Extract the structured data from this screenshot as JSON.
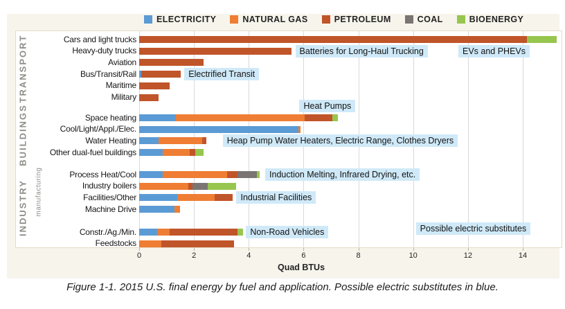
{
  "colors": {
    "electricity": "#5b9bd5",
    "natural_gas": "#ef7d33",
    "petroleum": "#c0552a",
    "coal": "#7a7572",
    "bioenergy": "#97c64e",
    "annotation_bg": "#cfe9f8"
  },
  "legend": {
    "items": [
      {
        "label": "ELECTRICITY",
        "key": "electricity"
      },
      {
        "label": "NATURAL GAS",
        "key": "natural_gas"
      },
      {
        "label": "PETROLEUM",
        "key": "petroleum"
      },
      {
        "label": "COAL",
        "key": "coal"
      },
      {
        "label": "BIOENERGY",
        "key": "bioenergy"
      }
    ]
  },
  "chart_data": {
    "type": "bar",
    "orientation": "horizontal-stacked",
    "xlabel": "Quad BTUs",
    "xticks": [
      0,
      2,
      4,
      6,
      8,
      10,
      12,
      14
    ],
    "xlim": [
      0,
      15.5
    ],
    "grid": "vertical",
    "series_keys": [
      "electricity",
      "natural_gas",
      "petroleum",
      "coal",
      "bioenergy"
    ],
    "groups": [
      {
        "name": "TRANSPORT",
        "subname": "",
        "rows": [
          {
            "label": "Cars and light trucks",
            "values": {
              "petroleum": 14.15,
              "bioenergy": 1.1
            }
          },
          {
            "label": "Heavy-duty trucks",
            "values": {
              "petroleum": 5.55
            }
          },
          {
            "label": "Aviation",
            "values": {
              "petroleum": 2.35
            }
          },
          {
            "label": "Bus/Transit/Rail",
            "values": {
              "electricity": 0.07,
              "petroleum": 1.45
            }
          },
          {
            "label": "Maritime",
            "values": {
              "petroleum": 1.1
            }
          },
          {
            "label": "Military",
            "values": {
              "petroleum": 0.7
            }
          }
        ]
      },
      {
        "name": "BUILDINGS",
        "subname": "",
        "rows": [
          {
            "label": "Space heating",
            "values": {
              "electricity": 1.35,
              "natural_gas": 4.7,
              "petroleum": 1.0,
              "bioenergy": 0.2
            }
          },
          {
            "label": "Cool/Light/Appl./Elec.",
            "values": {
              "electricity": 5.8,
              "natural_gas": 0.1
            }
          },
          {
            "label": "Water Heating",
            "values": {
              "electricity": 0.7,
              "natural_gas": 1.6,
              "petroleum": 0.15
            }
          },
          {
            "label": "Other dual-fuel buildings",
            "values": {
              "electricity": 0.85,
              "natural_gas": 1.0,
              "petroleum": 0.2,
              "bioenergy": 0.3
            }
          }
        ]
      },
      {
        "name": "INDUSTRY",
        "subname": "manufacturing",
        "rows": [
          {
            "label": "Process Heat/Cool",
            "values": {
              "electricity": 0.85,
              "natural_gas": 2.35,
              "petroleum": 0.4,
              "coal": 0.7,
              "bioenergy": 0.1
            }
          },
          {
            "label": "Industry boilers",
            "values": {
              "natural_gas": 1.8,
              "petroleum": 0.15,
              "coal": 0.55,
              "bioenergy": 1.05
            }
          },
          {
            "label": "Facilities/Other",
            "values": {
              "electricity": 1.4,
              "natural_gas": 1.35,
              "petroleum": 0.65
            }
          },
          {
            "label": "Machine Drive",
            "values": {
              "electricity": 1.3,
              "natural_gas": 0.2
            }
          }
        ]
      },
      {
        "name": "",
        "subname": "",
        "rows": [
          {
            "label": "Constr./Ag./Min.",
            "values": {
              "electricity": 0.65,
              "natural_gas": 0.45,
              "petroleum": 2.5,
              "bioenergy": 0.2
            }
          },
          {
            "label": "Feedstocks",
            "values": {
              "natural_gas": 0.8,
              "petroleum": 2.65
            }
          }
        ]
      }
    ],
    "annotations": [
      {
        "text": "Batteries for Long-Haul Trucking",
        "group": 0,
        "row": 1,
        "x": 5.7,
        "dy": 0
      },
      {
        "text": "EVs and PHEVs",
        "group": 0,
        "row": 1,
        "x": 11.65,
        "dy": 0
      },
      {
        "text": "Electrified Transit",
        "group": 0,
        "row": 3,
        "x": 1.65,
        "dy": 0
      },
      {
        "text": "Heat Pumps",
        "group": 1,
        "row": 0,
        "x": 5.85,
        "dy": -17
      },
      {
        "text": "Heap Pump Water Heaters, Electric Range, Clothes Dryers",
        "group": 1,
        "row": 2,
        "x": 3.05,
        "dy": 0
      },
      {
        "text": "Induction Melting, Infrared Drying, etc.",
        "group": 2,
        "row": 0,
        "x": 4.6,
        "dy": 0
      },
      {
        "text": "Industrial Facilities",
        "group": 2,
        "row": 2,
        "x": 3.55,
        "dy": 0
      },
      {
        "text": "Non-Road Vehicles",
        "group": 3,
        "row": 0,
        "x": 3.9,
        "dy": 0
      },
      {
        "text": "Possible electric substitutes",
        "group": 3,
        "row": 0,
        "x": 10.1,
        "dy": -5
      }
    ]
  },
  "axis": {
    "xlabel": "Quad BTUs"
  },
  "caption": "Figure 1-1. 2015 U.S. final energy by fuel and application. Possible electric substitutes in blue."
}
